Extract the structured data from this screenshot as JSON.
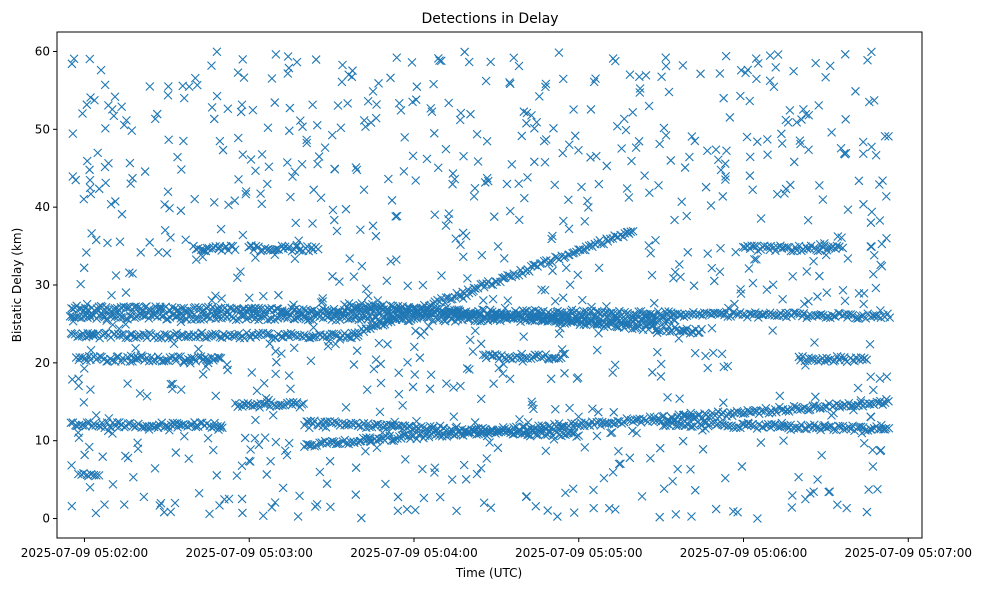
{
  "chart_data": {
    "type": "scatter",
    "title": "Detections in Delay",
    "xlabel": "Time (UTC)",
    "ylabel": "Bistatic Delay (km)",
    "marker": "x",
    "color": "#1f77b4",
    "xlim": [
      "2025-07-09 05:01:50",
      "2025-07-09 05:07:05"
    ],
    "ylim": [
      -2.5,
      62.5
    ],
    "x_ticks": [
      "2025-07-09 05:02:00",
      "2025-07-09 05:03:00",
      "2025-07-09 05:04:00",
      "2025-07-09 05:05:00",
      "2025-07-09 05:06:00",
      "2025-07-09 05:07:00"
    ],
    "y_ticks": [
      0,
      10,
      20,
      30,
      40,
      50,
      60
    ],
    "data_extent": {
      "t_start": "2025-07-09 05:01:55",
      "t_end": "2025-07-09 05:06:53"
    },
    "tracks": [
      {
        "name": "constant ~27 km",
        "t_start": "05:01:55",
        "t_end": "05:06:53",
        "y_start": 27,
        "y_end": 26
      },
      {
        "name": "constant ~26 km",
        "t_start": "05:01:55",
        "t_end": "05:05:35",
        "y_start": 26,
        "y_end": 25.5
      },
      {
        "name": "constant ~23.5 km",
        "t_start": "05:01:55",
        "t_end": "05:03:40",
        "y_start": 23.5,
        "y_end": 23.5
      },
      {
        "name": "segment ~20.5 km",
        "t_start": "05:01:57",
        "t_end": "05:02:50",
        "y_start": 20.5,
        "y_end": 20.5
      },
      {
        "name": "segment ~20.5 km (late)",
        "t_start": "05:04:25",
        "t_end": "05:04:55",
        "y_start": 20.8,
        "y_end": 20.8
      },
      {
        "name": "segment ~20.5 km (end)",
        "t_start": "05:06:20",
        "t_end": "05:06:45",
        "y_start": 20.5,
        "y_end": 20.5
      },
      {
        "name": "rising track",
        "t_start": "05:03:40",
        "t_end": "05:05:20",
        "y_start": 24,
        "y_end": 37
      },
      {
        "name": "falling track",
        "t_start": "05:03:35",
        "t_end": "05:05:45",
        "y_start": 27.5,
        "y_end": 24
      },
      {
        "name": "segment ~34.7 km",
        "t_start": "05:03:00",
        "t_end": "05:03:25",
        "y_start": 34.7,
        "y_end": 34.7
      },
      {
        "name": "segment ~34.7 km (b)",
        "t_start": "05:02:40",
        "t_end": "05:02:55",
        "y_start": 34.7,
        "y_end": 34.7
      },
      {
        "name": "segment ~34.7 km (c)",
        "t_start": "05:06:00",
        "t_end": "05:06:35",
        "y_start": 34.7,
        "y_end": 34.7
      },
      {
        "name": "segment ~12 km (early)",
        "t_start": "05:01:55",
        "t_end": "05:02:50",
        "y_start": 12,
        "y_end": 12
      },
      {
        "name": "track ~12 km",
        "t_start": "05:03:20",
        "t_end": "05:05:00",
        "y_start": 12.3,
        "y_end": 10.8
      },
      {
        "name": "rising lower track",
        "t_start": "05:03:20",
        "t_end": "05:06:53",
        "y_start": 9.5,
        "y_end": 15
      },
      {
        "name": "track ~12 km (late)",
        "t_start": "05:05:30",
        "t_end": "05:06:53",
        "y_start": 12.2,
        "y_end": 11.5
      },
      {
        "name": "segment ~14.5 km",
        "t_start": "05:02:55",
        "t_end": "05:03:20",
        "y_start": 14.6,
        "y_end": 14.6
      },
      {
        "name": "segment ~5.5 km",
        "t_start": "05:01:58",
        "t_end": "05:02:05",
        "y_start": 5.5,
        "y_end": 5.5
      }
    ],
    "background_clutter": {
      "count": 900,
      "y_range": [
        0,
        60
      ]
    }
  }
}
